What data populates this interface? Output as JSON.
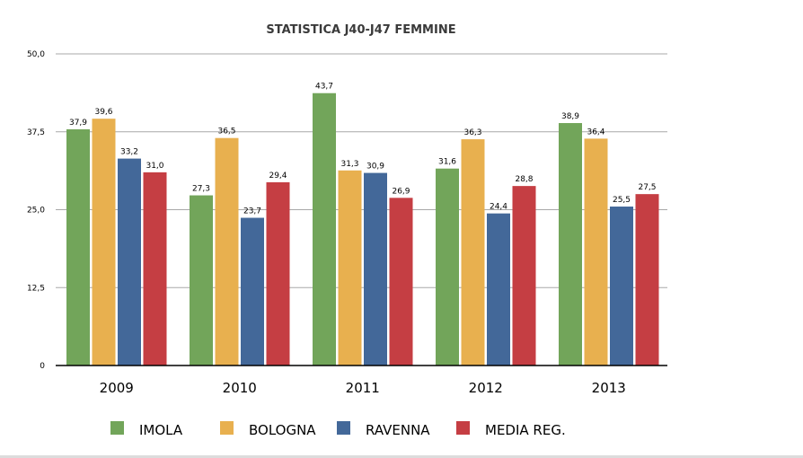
{
  "chart_data": {
    "type": "bar",
    "title": "STATISTICA J40-J47 FEMMINE",
    "xlabel": "",
    "ylabel": "",
    "categories": [
      "2009",
      "2010",
      "2011",
      "2012",
      "2013"
    ],
    "series": [
      {
        "name": "IMOLA",
        "color": "#72a55a",
        "values": [
          37.9,
          27.3,
          43.7,
          31.6,
          38.9
        ],
        "labels": [
          "37,9",
          "27,3",
          "43,7",
          "31,6",
          "38,9"
        ]
      },
      {
        "name": "BOLOGNA",
        "color": "#e8b04f",
        "values": [
          39.6,
          36.5,
          31.3,
          36.3,
          36.4
        ],
        "labels": [
          "39,6",
          "36,5",
          "31,3",
          "36,3",
          "36,4"
        ]
      },
      {
        "name": "RAVENNA",
        "color": "#436899",
        "values": [
          33.2,
          23.7,
          30.9,
          24.4,
          25.5
        ],
        "labels": [
          "33,2",
          "23,7",
          "30,9",
          "24,4",
          "25,5"
        ]
      },
      {
        "name": "MEDIA REG.",
        "color": "#c53e43",
        "values": [
          31.0,
          29.4,
          26.9,
          28.8,
          27.5
        ],
        "labels": [
          "31,0",
          "29,4",
          "26,9",
          "28,8",
          "27,5"
        ]
      }
    ],
    "ylim": [
      0,
      50
    ],
    "yticks": [
      0,
      12.5,
      25,
      37.5,
      50
    ],
    "ytick_labels": [
      "0",
      "12,5",
      "25,0",
      "37,5",
      "50,0"
    ],
    "grid": true,
    "legend_position": "bottom"
  }
}
